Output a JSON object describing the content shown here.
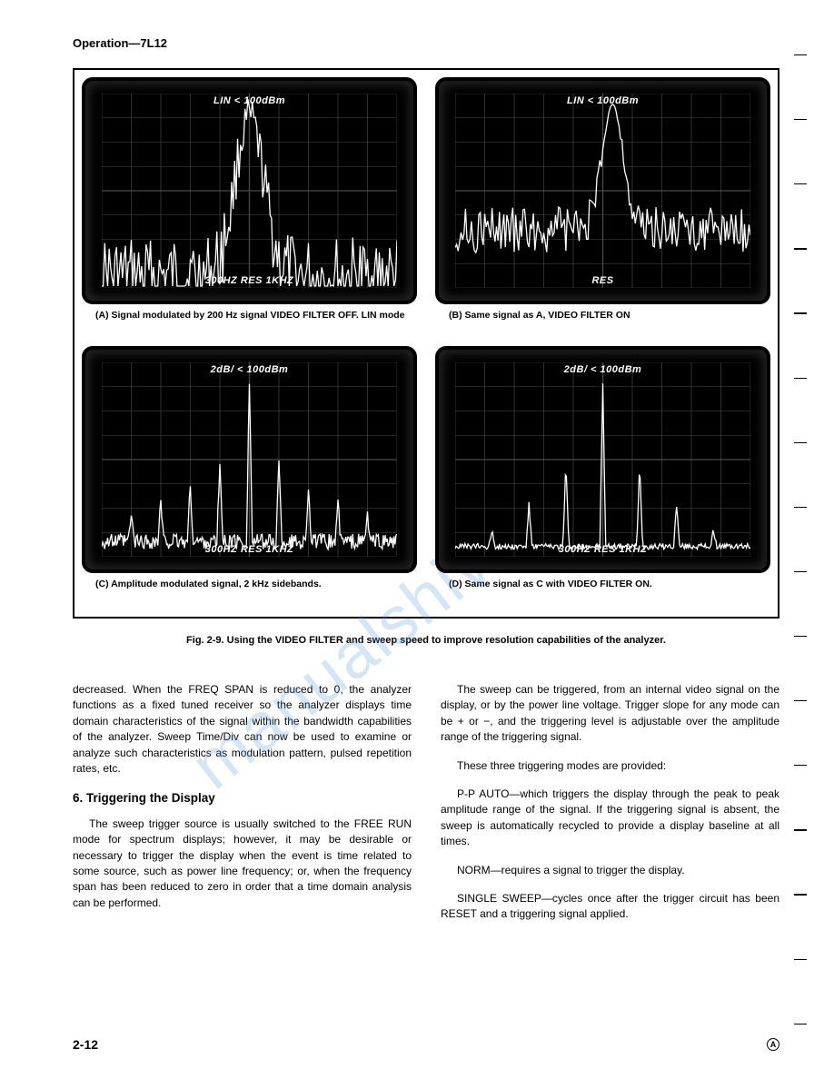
{
  "header": "Operation—7L12",
  "figure": {
    "caption": "Fig. 2-9. Using the VIDEO FILTER and sweep speed to improve resolution capabilities of the analyzer.",
    "scopes": {
      "A": {
        "top_readout": "LIN   < 100dBm",
        "bottom_readout": "300HZ RES     1KHZ",
        "caption": "(A)  Signal modulated by 200 Hz signal VIDEO FILTER OFF. LIN mode",
        "trace_type": "noisy_peak_center",
        "noise_level": 0.3,
        "peak_height": 0.82,
        "peak_width": 0.14,
        "grid_color": "#4a4a4a",
        "trace_color": "#ffffff",
        "background_color": "#000000"
      },
      "B": {
        "top_readout": "LIN   < 100dBm",
        "bottom_readout": "RES",
        "caption": "(B)  Same signal as A, VIDEO FILTER ON",
        "trace_type": "smooth_peak_center_noisy_base",
        "noise_level": 0.12,
        "peak_height": 0.86,
        "peak_width": 0.1,
        "grid_color": "#4a4a4a",
        "trace_color": "#ffffff",
        "background_color": "#000000"
      },
      "C": {
        "top_readout": "2dB/   < 100dBm",
        "bottom_readout": "300HZ RES   1KHZ",
        "caption": "(C)  Amplitude modulated signal, 2 kHz sidebands.",
        "trace_type": "spikes_with_center",
        "noise_level": 0.08,
        "peak_height": 0.92,
        "grid_color": "#4a4a4a",
        "trace_color": "#ffffff",
        "background_color": "#000000",
        "side_peak_heights": [
          0.15,
          0.22,
          0.32,
          0.45,
          0.92,
          0.45,
          0.32,
          0.22,
          0.15
        ]
      },
      "D": {
        "top_readout": "2dB/   < 100dBm",
        "bottom_readout": "300HZ RES   1KHZ",
        "caption": "(D)  Same signal as C with VIDEO FILTER ON.",
        "trace_type": "clean_spikes",
        "noise_level": 0.03,
        "peak_height": 0.92,
        "grid_color": "#4a4a4a",
        "trace_color": "#ffffff",
        "background_color": "#000000",
        "side_peak_heights": [
          0.1,
          0.24,
          0.48,
          0.92,
          0.48,
          0.24,
          0.1
        ]
      }
    }
  },
  "body": {
    "left": {
      "p1": "decreased. When the FREQ SPAN is reduced to 0, the analyzer functions as a fixed tuned receiver so the analyzer displays time domain characteristics of the signal within the bandwidth capabilities of the analyzer. Sweep Time/Div can now be used to examine or analyze such characteristics as modulation pattern, pulsed repetition rates, etc.",
      "h6": "6.  Triggering the Display",
      "p2": "The sweep trigger source is usually switched to the FREE RUN mode for spectrum displays; however, it may be desirable or necessary to trigger the display when the event is time related to some source, such as power line frequency; or, when the frequency span has been reduced to zero in order that a time domain analysis can be performed."
    },
    "right": {
      "p1": "The sweep can be triggered, from an internal video signal on the display, or by the power line voltage. Trigger slope for any mode can be + or −, and the triggering level is adjustable over the amplitude range of the triggering signal.",
      "p2": "These three triggering modes are provided:",
      "p3": "P-P AUTO—which triggers the display through the peak to peak amplitude range of the signal. If the triggering signal is absent, the sweep is automatically recycled to provide a display baseline at all times.",
      "p4": "NORM—requires a signal to trigger the display.",
      "p5": "SINGLE SWEEP—cycles once after the trigger circuit has been RESET and a triggering signal applied."
    }
  },
  "footer": {
    "page": "2-12",
    "symbol": "A"
  },
  "watermark": "manualshive.com"
}
